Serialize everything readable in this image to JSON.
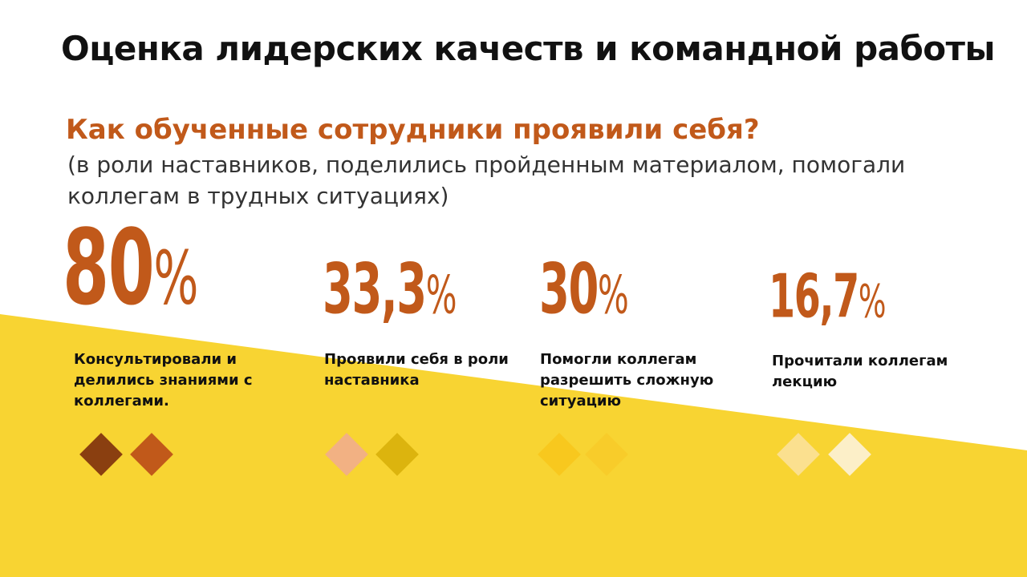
{
  "title": "Оценка лидерских качеств и командной работы",
  "question": "Как обученные сотрудники проявили себя?",
  "subtitle": "(в роли наставников, поделились пройденным материалом, помогали коллегам в трудных ситуациях)",
  "stats": [
    {
      "value": "80",
      "unit": "%",
      "label": "Консультировали и делились знаниями с коллегами.",
      "colors": [
        "#8a3f10",
        "#c1591a"
      ]
    },
    {
      "value": "33,3",
      "unit": "%",
      "label": "Проявили себя в роли наставника",
      "colors": [
        "#f2b183",
        "#dcb40e"
      ]
    },
    {
      "value": "30",
      "unit": "%",
      "label": "Помогли коллегам разрешить сложную ситуацию",
      "colors": [
        "#f8c81e",
        "#f8cc2a"
      ]
    },
    {
      "value": "16,7",
      "unit": "%",
      "label": "Прочитали коллегам лекцию",
      "colors": [
        "#fbe08f",
        "#fcefc8"
      ]
    }
  ],
  "colors": {
    "background_yellow": "#f8d432",
    "accent": "#c1591a"
  }
}
